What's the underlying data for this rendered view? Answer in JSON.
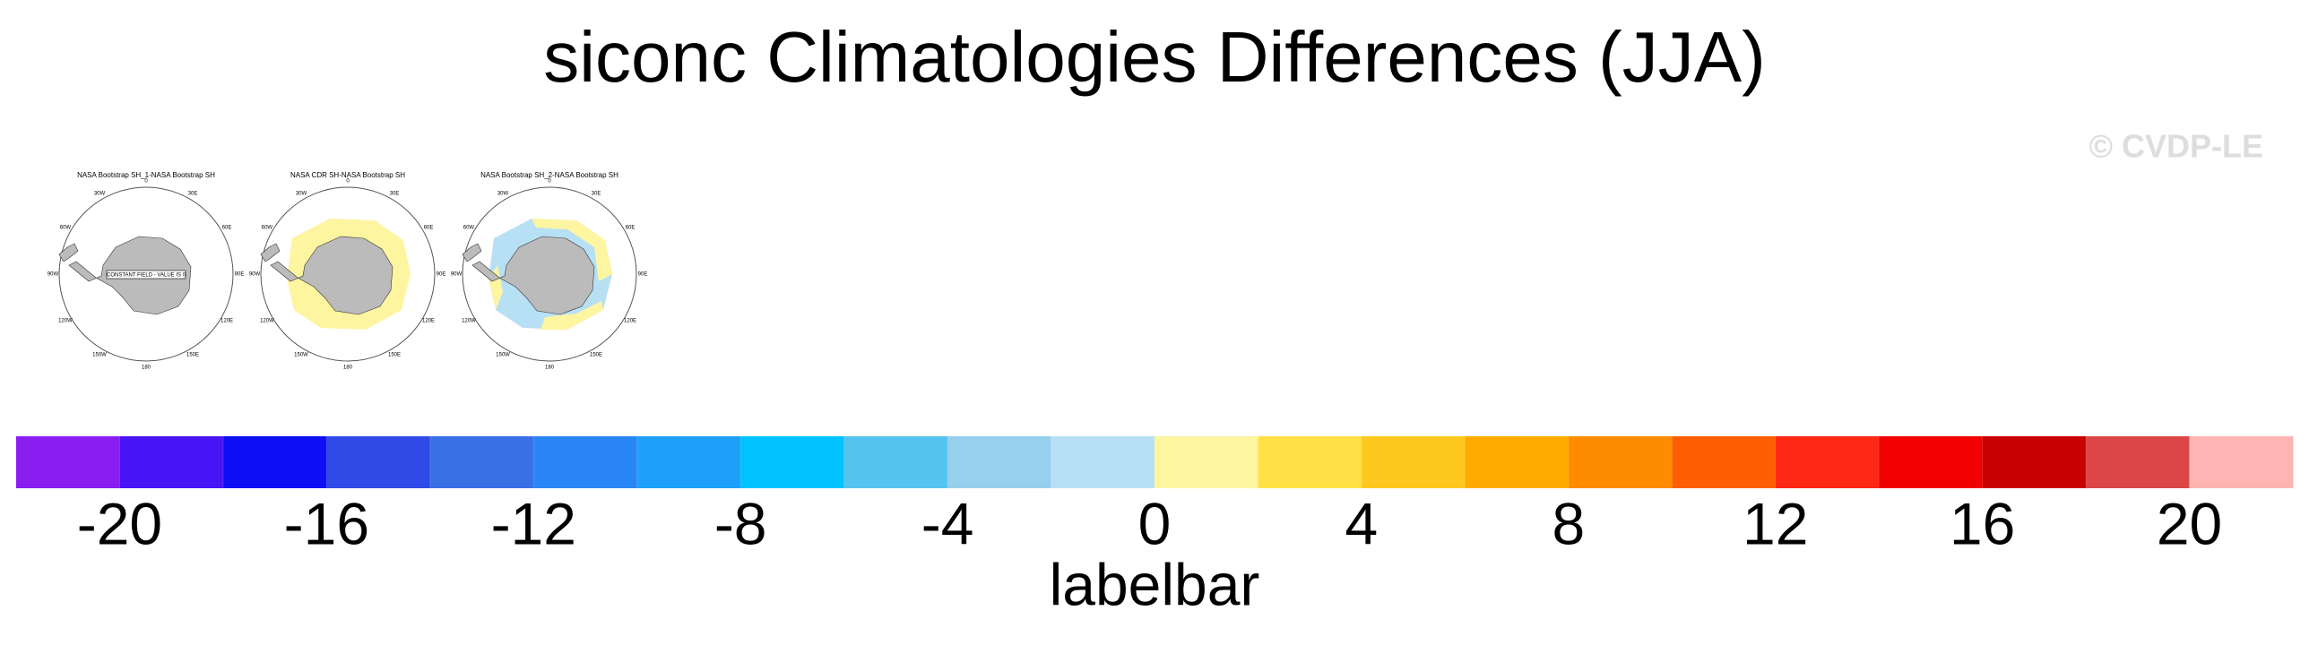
{
  "title": "siconc Climatologies Differences (JJA)",
  "watermark": "© CVDP-LE",
  "panels": [
    {
      "title": "NASA Bootstrap SH_1-NASA Bootstrap SH",
      "note": "CONSTANT FIELD - VALUE IS 0"
    },
    {
      "title": "NASA CDR SH-NASA Bootstrap SH"
    },
    {
      "title": "NASA Bootstrap SH_2-NASA Bootstrap SH"
    }
  ],
  "longitude_labels": [
    "0",
    "30E",
    "60E",
    "90E",
    "120E",
    "150E",
    "180",
    "150W",
    "120W",
    "90W",
    "60W",
    "30W"
  ],
  "colorbar": {
    "label": "labelbar",
    "levels": [
      -20,
      -18,
      -16,
      -14,
      -12,
      -10,
      -8,
      -6,
      -4,
      -2,
      0,
      2,
      4,
      6,
      8,
      10,
      12,
      14,
      16,
      18,
      20
    ],
    "ticks": [
      -20,
      -16,
      -12,
      -8,
      -4,
      0,
      4,
      8,
      12,
      16,
      20
    ],
    "colors": [
      "#8a1ef0",
      "#4614f5",
      "#0f0ff5",
      "#2f4ae6",
      "#3a6fe6",
      "#2a86f5",
      "#1ea0fa",
      "#00c3ff",
      "#55c3f0",
      "#96d0ec",
      "#b8e0f5",
      "#fdf5a0",
      "#ffe146",
      "#ffc81e",
      "#ffaa00",
      "#ff8c00",
      "#ff5f00",
      "#ff2814",
      "#f00000",
      "#c80000",
      "#dc4646",
      "#ffb4b4"
    ]
  }
}
